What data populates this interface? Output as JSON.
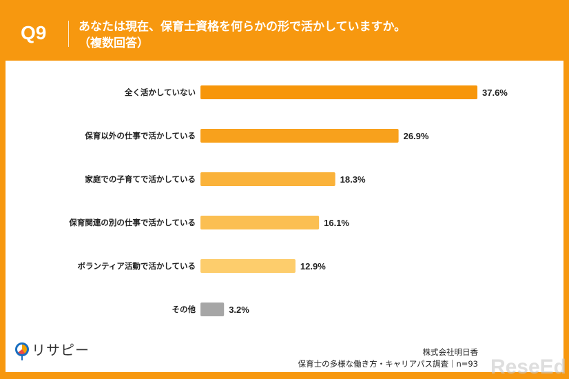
{
  "header": {
    "qnum": "Q9",
    "title_line1": "あなたは現在、保育士資格を何らかの形で活かしていますか。",
    "title_line2": "（複数回答）"
  },
  "chart_data": {
    "type": "bar",
    "orientation": "horizontal",
    "categories": [
      "全く活かしていない",
      "保育以外の仕事で活かしている",
      "家庭での子育てで活かしている",
      "保育関連の別の仕事で活かしている",
      "ボランティア活動で活かしている",
      "その他"
    ],
    "values": [
      37.6,
      26.9,
      18.3,
      16.1,
      12.9,
      3.2
    ],
    "value_labels": [
      "37.6%",
      "26.9%",
      "18.3%",
      "16.1%",
      "12.9%",
      "3.2%"
    ],
    "colors": [
      "#f7960a",
      "#f8a11c",
      "#fab23a",
      "#fbbf52",
      "#fdcd6c",
      "#a6a6a6"
    ],
    "unit": "%",
    "grid": false
  },
  "logo": {
    "text": "リサピー"
  },
  "footer": {
    "company": "株式会社明日香",
    "source": "保育士の多様な働き方・キャリアパス調査｜n=93"
  },
  "watermark": "ReseEd"
}
